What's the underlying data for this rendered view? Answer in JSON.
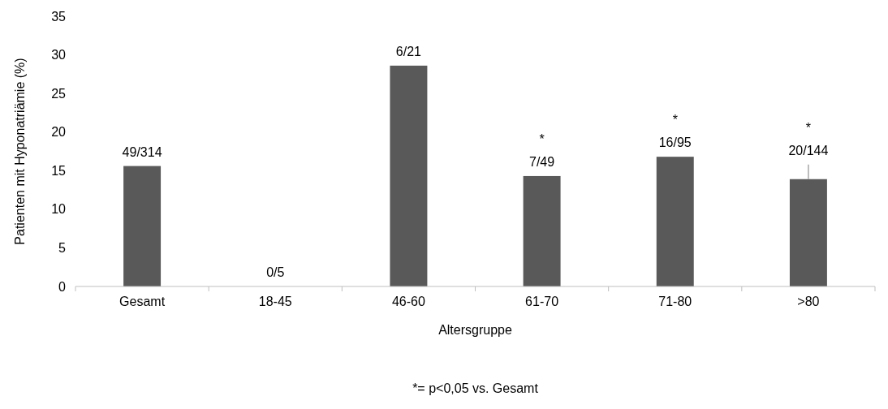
{
  "chart_data": {
    "type": "bar",
    "xlabel": "Altersgruppe",
    "ylabel": "Patienten mit Hyponatriämie (%)",
    "categories": [
      "Gesamt",
      "18-45",
      "46-60",
      "61-70",
      "71-80",
      ">80"
    ],
    "values": [
      15.6,
      0,
      28.6,
      14.3,
      16.8,
      13.9
    ],
    "value_labels": [
      "49/314",
      "0/5",
      "6/21",
      "*\n7/49",
      "*\n16/95",
      "*\n20/144"
    ],
    "errors": [
      null,
      null,
      null,
      null,
      null,
      [
        13.9,
        15.8
      ]
    ],
    "color": "#595959",
    "ylim": [
      0,
      35
    ],
    "yticks": [
      0,
      5,
      10,
      15,
      20,
      25,
      30,
      35
    ],
    "grid": false,
    "annotations": [
      "*= p<0,05 vs. Gesamt"
    ]
  }
}
